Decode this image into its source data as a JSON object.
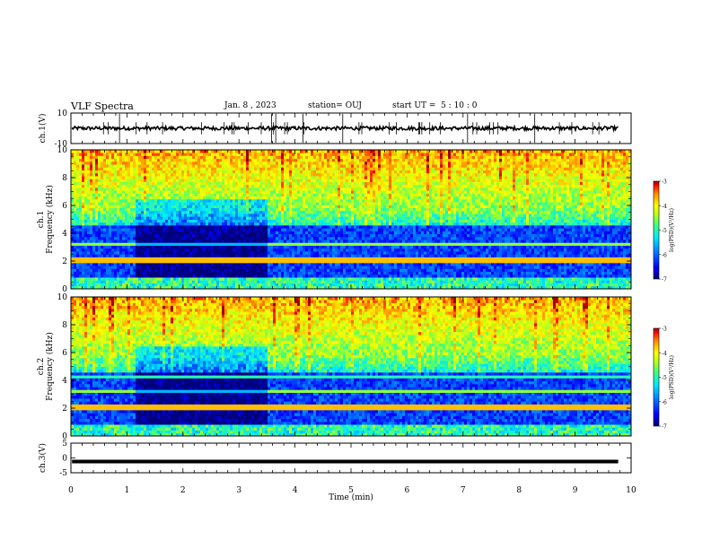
{
  "header": {
    "title": "VLF Spectra",
    "date": "Jan. 8 , 2023",
    "station": "station= OUJ",
    "start": "start UT =  5 : 10 : 0"
  },
  "colors": {
    "colormap": [
      "#00007a",
      "#0000ff",
      "#0078ff",
      "#00e8ff",
      "#40ff80",
      "#9cff30",
      "#ffff00",
      "#ff9000",
      "#ff0000",
      "#b00000"
    ]
  },
  "chart_data": [
    {
      "type": "line",
      "name": "ch1-waveform",
      "ylabel": "ch.1(V)",
      "ylim": [
        -10,
        10
      ],
      "yticks": [
        "10",
        "-10"
      ],
      "level": 0,
      "xlim": [
        0,
        10
      ]
    },
    {
      "type": "heatmap",
      "name": "ch1-spectrogram",
      "ylabel": "ch.1\nFrequency (kHz)",
      "ylim": [
        0,
        10
      ],
      "yticks": [
        "0",
        "2",
        "4",
        "6",
        "8",
        "10"
      ],
      "xlim": [
        0,
        10
      ],
      "quiet_interval_min": [
        1.15,
        3.5
      ],
      "colorbar": {
        "label": "log(PSD)(V²/Hz)",
        "range": [
          -7,
          -3
        ],
        "ticks": [
          "-3",
          "-4",
          "-5",
          "-6",
          "-7"
        ]
      }
    },
    {
      "type": "heatmap",
      "name": "ch2-spectrogram",
      "ylabel": "ch.2\nFrequency (kHz)",
      "ylim": [
        0,
        10
      ],
      "yticks": [
        "0",
        "2",
        "4",
        "6",
        "8",
        "10"
      ],
      "xlim": [
        0,
        10
      ],
      "quiet_interval_min": [
        1.15,
        3.5
      ],
      "colorbar": {
        "label": "log(PSD)(V²/Hz)",
        "range": [
          -7,
          -3
        ],
        "ticks": [
          "-3",
          "-4",
          "-5",
          "-6",
          "-7"
        ]
      }
    },
    {
      "type": "line",
      "name": "ch3-waveform",
      "ylabel": "ch.3(V)",
      "ylim": [
        -5,
        5
      ],
      "yticks": [
        "5",
        "0",
        "-5"
      ],
      "level": -1.2,
      "xlim": [
        0,
        10
      ]
    }
  ],
  "xaxis": {
    "label": "Time (min)",
    "ticks": [
      "0",
      "1",
      "2",
      "3",
      "4",
      "5",
      "6",
      "7",
      "8",
      "9",
      "10"
    ]
  }
}
